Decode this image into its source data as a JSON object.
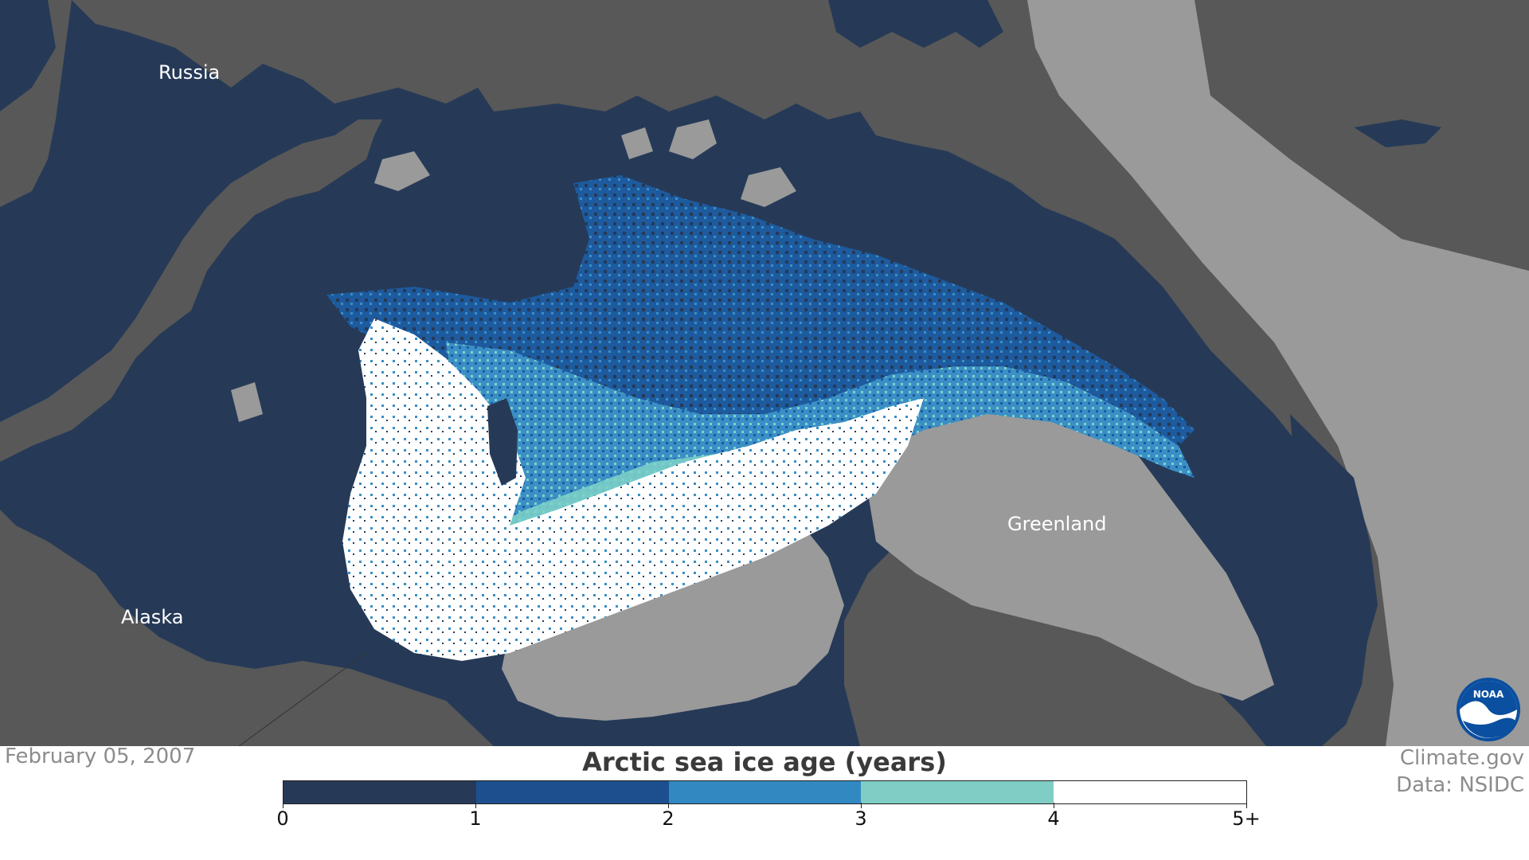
{
  "map": {
    "title": "Arctic sea ice age (years)",
    "date": "February 05, 2007",
    "labels": {
      "russia": "Russia",
      "alaska": "Alaska",
      "greenland": "Greenland"
    },
    "credits": {
      "site": "Climate.gov",
      "data": "Data: NSIDC"
    },
    "logo_text": "NOAA"
  },
  "colors": {
    "land": "#9a9a9a",
    "coast_shelf": "#585858",
    "ocean_0_1": "#263a57",
    "age_1_2": "#1d5a9e",
    "age_2_3": "#3a8fc6",
    "age_3_4": "#7fd3c8",
    "age_4_5plus": "#ffffff",
    "text_gray": "#8c8c8c"
  },
  "legend": {
    "bins": [
      {
        "from": 0,
        "to": 1,
        "color": "#263a57"
      },
      {
        "from": 1,
        "to": 2,
        "color": "#1d4f8f"
      },
      {
        "from": 2,
        "to": 3,
        "color": "#3289c2"
      },
      {
        "from": 3,
        "to": 4,
        "color": "#7fcdc4"
      },
      {
        "from": 4,
        "to": 5,
        "color": "#ffffff"
      }
    ],
    "tick_labels": [
      "0",
      "1",
      "2",
      "3",
      "4",
      "5+"
    ]
  }
}
